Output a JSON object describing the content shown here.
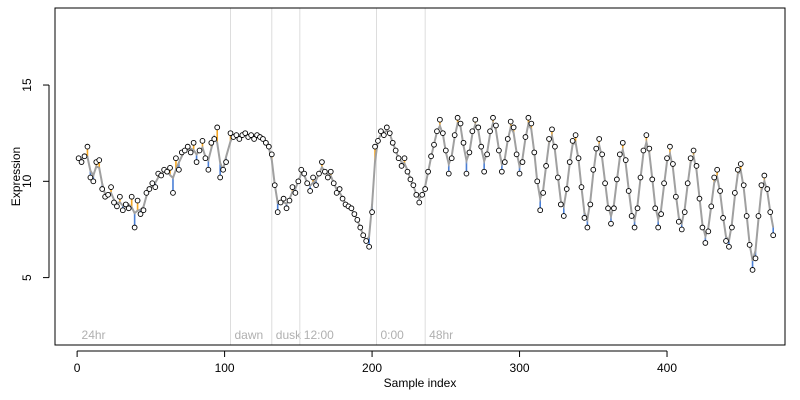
{
  "chart_data": {
    "type": "scatter",
    "title": "",
    "xlabel": "Sample index",
    "ylabel": "Expression",
    "xlim": [
      -15,
      480
    ],
    "ylim": [
      1.5,
      19
    ],
    "x_ticks": [
      0,
      100,
      200,
      300,
      400
    ],
    "y_ticks": [
      5,
      10,
      15
    ],
    "grid": false,
    "colors": {
      "points_fill": "#ffffff",
      "points_edge": "#000000",
      "fitted_line": "#a0a0a0",
      "residual_above": "#f5a623",
      "residual_below": "#4a7fd6",
      "phase_line": "#dddddd",
      "phase_label": "#b0b0b0"
    },
    "phase_markers": [
      {
        "x": 104,
        "label": "dawn"
      },
      {
        "x": 132,
        "label": "dusk"
      },
      {
        "x": 151,
        "label": "12:00"
      },
      {
        "x": 203,
        "label": "0:00"
      },
      {
        "x": 236,
        "label": "48hr"
      }
    ],
    "label_24hr": {
      "x": 3,
      "label": "24hr"
    },
    "series": [
      {
        "values": [
          [
            1,
            11.2
          ],
          [
            3,
            11.0
          ],
          [
            5,
            11.3
          ],
          [
            7,
            11.8
          ],
          [
            9,
            10.2
          ],
          [
            11,
            10.0
          ],
          [
            13,
            11.0
          ],
          [
            15,
            11.1
          ],
          [
            17,
            9.6
          ],
          [
            19,
            9.2
          ],
          [
            21,
            9.3
          ],
          [
            23,
            9.7
          ],
          [
            25,
            8.9
          ],
          [
            27,
            8.7
          ],
          [
            29,
            9.2
          ],
          [
            31,
            8.5
          ],
          [
            33,
            8.8
          ],
          [
            35,
            8.6
          ],
          [
            37,
            9.2
          ],
          [
            39,
            7.6
          ],
          [
            41,
            9.0
          ],
          [
            43,
            8.3
          ],
          [
            45,
            8.5
          ],
          [
            47,
            9.4
          ],
          [
            49,
            9.6
          ],
          [
            51,
            9.9
          ],
          [
            53,
            9.7
          ],
          [
            55,
            10.4
          ],
          [
            57,
            10.3
          ],
          [
            59,
            10.6
          ],
          [
            61,
            10.5
          ],
          [
            63,
            10.7
          ],
          [
            65,
            9.4
          ],
          [
            67,
            11.2
          ],
          [
            69,
            10.6
          ],
          [
            71,
            11.5
          ],
          [
            73,
            11.6
          ],
          [
            75,
            11.8
          ],
          [
            77,
            11.5
          ],
          [
            79,
            12.0
          ],
          [
            81,
            11.0
          ],
          [
            83,
            11.6
          ],
          [
            85,
            12.1
          ],
          [
            87,
            11.2
          ],
          [
            89,
            10.6
          ],
          [
            91,
            12.0
          ],
          [
            93,
            12.2
          ],
          [
            95,
            12.8
          ],
          [
            97,
            10.2
          ],
          [
            99,
            10.6
          ],
          [
            101,
            11.0
          ],
          [
            104,
            12.5
          ],
          [
            106,
            12.3
          ],
          [
            108,
            12.4
          ],
          [
            110,
            12.2
          ],
          [
            112,
            12.4
          ],
          [
            114,
            12.5
          ],
          [
            116,
            12.3
          ],
          [
            118,
            12.4
          ],
          [
            120,
            12.2
          ],
          [
            122,
            12.4
          ],
          [
            124,
            12.3
          ],
          [
            126,
            12.2
          ],
          [
            128,
            12.0
          ],
          [
            130,
            11.8
          ],
          [
            132,
            11.4
          ],
          [
            134,
            9.8
          ],
          [
            136,
            8.4
          ],
          [
            138,
            8.9
          ],
          [
            140,
            9.1
          ],
          [
            142,
            8.6
          ],
          [
            144,
            9.0
          ],
          [
            146,
            9.7
          ],
          [
            148,
            9.4
          ],
          [
            150,
            10.0
          ],
          [
            152,
            10.6
          ],
          [
            154,
            10.4
          ],
          [
            156,
            9.9
          ],
          [
            158,
            9.5
          ],
          [
            160,
            10.2
          ],
          [
            162,
            9.8
          ],
          [
            164,
            10.4
          ],
          [
            166,
            11.0
          ],
          [
            168,
            10.5
          ],
          [
            170,
            10.2
          ],
          [
            172,
            10.5
          ],
          [
            174,
            9.9
          ],
          [
            176,
            9.4
          ],
          [
            178,
            9.6
          ],
          [
            180,
            9.1
          ],
          [
            182,
            8.8
          ],
          [
            184,
            8.7
          ],
          [
            186,
            8.6
          ],
          [
            188,
            8.3
          ],
          [
            190,
            8.0
          ],
          [
            192,
            7.6
          ],
          [
            194,
            7.2
          ],
          [
            196,
            6.9
          ],
          [
            198,
            6.6
          ],
          [
            200,
            8.4
          ],
          [
            202,
            11.8
          ],
          [
            204,
            12.1
          ],
          [
            206,
            12.6
          ],
          [
            208,
            12.4
          ],
          [
            210,
            12.8
          ],
          [
            212,
            12.5
          ],
          [
            214,
            12.0
          ],
          [
            216,
            11.6
          ],
          [
            218,
            11.2
          ],
          [
            220,
            10.8
          ],
          [
            222,
            11.2
          ],
          [
            224,
            10.5
          ],
          [
            226,
            10.1
          ],
          [
            228,
            9.8
          ],
          [
            230,
            9.3
          ],
          [
            232,
            8.9
          ],
          [
            234,
            9.3
          ],
          [
            236,
            9.6
          ],
          [
            238,
            10.5
          ],
          [
            240,
            11.3
          ],
          [
            242,
            11.9
          ],
          [
            244,
            12.6
          ],
          [
            246,
            13.2
          ],
          [
            248,
            12.5
          ],
          [
            250,
            11.6
          ],
          [
            252,
            10.4
          ],
          [
            254,
            11.2
          ],
          [
            256,
            12.4
          ],
          [
            258,
            13.3
          ],
          [
            260,
            13.0
          ],
          [
            262,
            12.0
          ],
          [
            264,
            10.4
          ],
          [
            266,
            11.5
          ],
          [
            268,
            12.6
          ],
          [
            270,
            13.2
          ],
          [
            272,
            12.8
          ],
          [
            274,
            11.8
          ],
          [
            276,
            10.5
          ],
          [
            278,
            11.4
          ],
          [
            280,
            12.6
          ],
          [
            282,
            13.3
          ],
          [
            284,
            12.9
          ],
          [
            286,
            11.6
          ],
          [
            288,
            10.5
          ],
          [
            290,
            11.0
          ],
          [
            292,
            12.2
          ],
          [
            294,
            13.1
          ],
          [
            296,
            12.8
          ],
          [
            298,
            11.4
          ],
          [
            300,
            10.4
          ],
          [
            302,
            11.0
          ],
          [
            304,
            12.3
          ],
          [
            306,
            13.3
          ],
          [
            308,
            13.0
          ],
          [
            310,
            11.5
          ],
          [
            312,
            10.0
          ],
          [
            314,
            8.5
          ],
          [
            316,
            9.4
          ],
          [
            318,
            10.8
          ],
          [
            320,
            12.2
          ],
          [
            322,
            12.7
          ],
          [
            324,
            11.8
          ],
          [
            326,
            10.2
          ],
          [
            328,
            8.8
          ],
          [
            330,
            8.2
          ],
          [
            332,
            9.6
          ],
          [
            334,
            11.0
          ],
          [
            336,
            12.1
          ],
          [
            338,
            12.4
          ],
          [
            340,
            11.2
          ],
          [
            342,
            9.7
          ],
          [
            344,
            8.1
          ],
          [
            346,
            7.6
          ],
          [
            348,
            8.8
          ],
          [
            350,
            10.6
          ],
          [
            352,
            11.7
          ],
          [
            354,
            12.2
          ],
          [
            356,
            11.4
          ],
          [
            358,
            9.9
          ],
          [
            360,
            8.6
          ],
          [
            362,
            7.8
          ],
          [
            364,
            8.6
          ],
          [
            366,
            10.1
          ],
          [
            368,
            11.4
          ],
          [
            370,
            12.0
          ],
          [
            372,
            11.1
          ],
          [
            374,
            9.5
          ],
          [
            376,
            8.2
          ],
          [
            378,
            7.6
          ],
          [
            380,
            8.6
          ],
          [
            382,
            10.2
          ],
          [
            384,
            11.6
          ],
          [
            386,
            12.4
          ],
          [
            388,
            11.7
          ],
          [
            390,
            10.1
          ],
          [
            392,
            8.6
          ],
          [
            394,
            7.6
          ],
          [
            396,
            8.3
          ],
          [
            398,
            9.9
          ],
          [
            400,
            11.2
          ],
          [
            402,
            11.8
          ],
          [
            404,
            10.9
          ],
          [
            406,
            9.2
          ],
          [
            408,
            7.9
          ],
          [
            410,
            7.5
          ],
          [
            412,
            8.4
          ],
          [
            414,
            9.9
          ],
          [
            416,
            11.2
          ],
          [
            418,
            11.6
          ],
          [
            420,
            10.8
          ],
          [
            422,
            9.1
          ],
          [
            424,
            7.6
          ],
          [
            426,
            6.8
          ],
          [
            428,
            7.4
          ],
          [
            430,
            8.7
          ],
          [
            432,
            10.2
          ],
          [
            434,
            10.6
          ],
          [
            436,
            9.5
          ],
          [
            438,
            8.1
          ],
          [
            440,
            6.9
          ],
          [
            442,
            6.6
          ],
          [
            444,
            7.6
          ],
          [
            446,
            9.4
          ],
          [
            448,
            10.6
          ],
          [
            450,
            10.9
          ],
          [
            452,
            9.8
          ],
          [
            454,
            8.2
          ],
          [
            456,
            6.7
          ],
          [
            458,
            5.4
          ],
          [
            460,
            6.0
          ],
          [
            462,
            8.2
          ],
          [
            464,
            9.8
          ],
          [
            466,
            10.3
          ],
          [
            468,
            9.6
          ],
          [
            470,
            8.4
          ],
          [
            472,
            7.2
          ]
        ]
      }
    ]
  }
}
